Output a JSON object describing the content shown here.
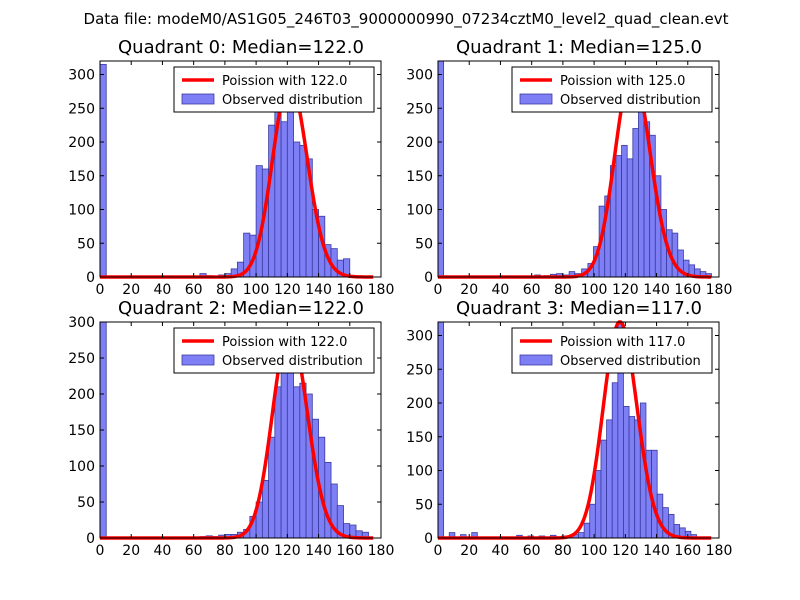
{
  "figure": {
    "suptitle": "Data file: modeM0/AS1G05_246T03_9000000990_07234cztM0_level2_quad_clean.evt"
  },
  "colors": {
    "line": "#ff0000",
    "bar_fill": "#7f7ff5",
    "bar_edge": "#3a3aa0",
    "axes": "#000000"
  },
  "chart_data": [
    {
      "type": "bar",
      "title": "Quadrant 0: Median=122.0",
      "xlim": [
        0,
        180
      ],
      "ylim": [
        0,
        320
      ],
      "xticks": [
        0,
        20,
        40,
        60,
        80,
        100,
        120,
        140,
        160,
        180
      ],
      "yticks": [
        0,
        50,
        100,
        150,
        200,
        250,
        300
      ],
      "legend_loc": "top-right",
      "legend": [
        "Poission with 122.0",
        "Observed distribution"
      ],
      "bin_width": 4,
      "bins": [
        0,
        64,
        68,
        76,
        80,
        84,
        88,
        92,
        96,
        100,
        104,
        108,
        112,
        116,
        120,
        124,
        128,
        132,
        136,
        140,
        144,
        148,
        152,
        156,
        160
      ],
      "counts": [
        315,
        5,
        2,
        3,
        5,
        12,
        22,
        65,
        62,
        165,
        160,
        225,
        245,
        230,
        255,
        200,
        195,
        175,
        100,
        90,
        48,
        42,
        25,
        27,
        0
      ],
      "poisson_mean": 122.0,
      "poisson_scale": 290
    },
    {
      "type": "bar",
      "title": "Quadrant 1: Median=125.0",
      "xlim": [
        0,
        180
      ],
      "ylim": [
        0,
        320
      ],
      "xticks": [
        0,
        20,
        40,
        60,
        80,
        100,
        120,
        140,
        160,
        180
      ],
      "yticks": [
        0,
        50,
        100,
        150,
        200,
        250,
        300
      ],
      "legend_loc": "top-right",
      "legend": [
        "Poission with 125.0",
        "Observed distribution"
      ],
      "bin_width": 3.6,
      "bins": [
        0,
        62,
        68,
        72,
        76,
        80,
        84,
        88,
        92,
        96,
        99.6,
        103.2,
        106.8,
        110.4,
        114,
        117.6,
        121.2,
        124.8,
        128.4,
        132,
        135.6,
        139.2,
        142.8,
        146.4,
        150,
        153.6,
        157.2,
        160.8,
        164.4,
        168,
        171.6
      ],
      "counts": [
        320,
        3,
        2,
        4,
        5,
        3,
        8,
        5,
        12,
        20,
        45,
        105,
        120,
        165,
        180,
        195,
        175,
        220,
        270,
        230,
        210,
        150,
        100,
        70,
        65,
        40,
        25,
        18,
        12,
        8,
        5
      ],
      "poisson_mean": 125.0,
      "poisson_scale": 305
    },
    {
      "type": "bar",
      "title": "Quadrant 2: Median=122.0",
      "xlim": [
        0,
        180
      ],
      "ylim": [
        0,
        300
      ],
      "xticks": [
        0,
        20,
        40,
        60,
        80,
        100,
        120,
        140,
        160,
        180
      ],
      "yticks": [
        0,
        50,
        100,
        150,
        200,
        250,
        300
      ],
      "legend_loc": "top-right",
      "legend": [
        "Poission with 122.0",
        "Observed distribution"
      ],
      "bin_width": 4,
      "bins": [
        0,
        64,
        68,
        72,
        76,
        80,
        84,
        88,
        92,
        96,
        100,
        104,
        108,
        112,
        116,
        120,
        124,
        128,
        132,
        136,
        140,
        144,
        148,
        152,
        156,
        160,
        164,
        168
      ],
      "counts": [
        300,
        2,
        3,
        2,
        4,
        5,
        5,
        8,
        12,
        30,
        50,
        80,
        140,
        210,
        230,
        280,
        210,
        215,
        200,
        165,
        140,
        105,
        75,
        45,
        20,
        18,
        10,
        8
      ],
      "poisson_mean": 122.0,
      "poisson_scale": 290
    },
    {
      "type": "bar",
      "title": "Quadrant 3: Median=117.0",
      "xlim": [
        0,
        180
      ],
      "ylim": [
        0,
        320
      ],
      "xticks": [
        0,
        20,
        40,
        60,
        80,
        100,
        120,
        140,
        160,
        180
      ],
      "yticks": [
        0,
        50,
        100,
        150,
        200,
        250,
        300
      ],
      "legend_loc": "top-right",
      "legend": [
        "Poission with 117.0",
        "Observed distribution"
      ],
      "bin_width": 3.6,
      "bins": [
        0,
        7.2,
        14.4,
        21.6,
        50.4,
        57.6,
        64.8,
        72,
        79.2,
        86.4,
        90,
        93.6,
        97.2,
        100.8,
        104.4,
        108,
        111.6,
        115.2,
        118.8,
        122.4,
        126,
        129.6,
        133.2,
        136.8,
        140.4,
        144,
        147.6,
        151.2,
        154.8,
        158.4,
        162
      ],
      "counts": [
        320,
        8,
        5,
        8,
        4,
        3,
        3,
        4,
        3,
        5,
        8,
        22,
        50,
        100,
        145,
        175,
        230,
        320,
        195,
        180,
        175,
        200,
        130,
        130,
        65,
        45,
        35,
        20,
        15,
        10,
        5
      ],
      "poisson_mean": 117.0,
      "poisson_scale": 320
    }
  ]
}
